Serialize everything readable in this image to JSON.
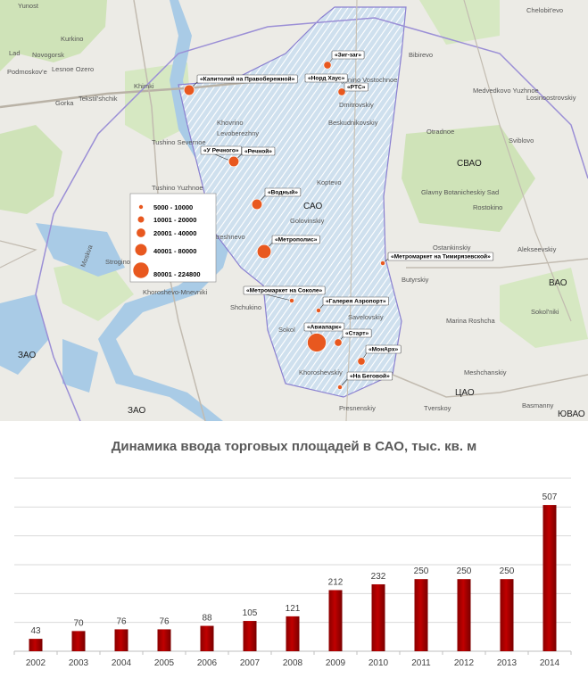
{
  "map": {
    "districts": [
      "САО",
      "СВАО",
      "ВАО",
      "ЗАО",
      "ЦАО",
      "ЮВАО",
      "ЗАО"
    ],
    "places": [
      "Yunost",
      "Kurkino",
      "Lad",
      "Novogorsk",
      "Podmoskov'e",
      "Lesnoe Ozero",
      "Khimki",
      "Gorka",
      "Tekstil'shchik",
      "Tushino Severnoe",
      "Tushino Yuzhnoe",
      "Pokrovskoe-Streshnevo",
      "Shchukino",
      "Strogino",
      "Khoroshevo-Mnevniki",
      "Khovrino",
      "Levoberezhny",
      "Degunino Vostochnoe",
      "Bibirevo",
      "Medvedkovo Yuzhnoe",
      "Losinoostrovskiy",
      "Otradnoe",
      "Sviblovo",
      "Rostokino",
      "Ostankinskiy",
      "Alekseevskiy",
      "Butyrskiy",
      "Marina Roshcha",
      "Sokol'niki",
      "Meshchanskiy",
      "Tverskoy",
      "Presnenskiy",
      "Basmanny",
      "Sokol",
      "Savelovskiy",
      "Khoroshevskiy",
      "Koptevo",
      "Golovinskiy",
      "Dmitrovskiy",
      "Beskudnikovskiy",
      "Chelobit'evo",
      "Moskva",
      "Glavny Botanicheskiy Sad"
    ],
    "legend": [
      "5000 - 10000",
      "10001 - 20000",
      "20001 - 40000",
      "40001 - 80000",
      "80001 - 224800"
    ],
    "malls": [
      {
        "name": "«Капитолий на Правобережной»",
        "size": 3
      },
      {
        "name": "«Зиг-заг»",
        "size": 2
      },
      {
        "name": "«Норд Хаус»",
        "size": 2
      },
      {
        "name": "«РТС»",
        "size": 2
      },
      {
        "name": "«У Речного»",
        "size": 2
      },
      {
        "name": "«Речной»",
        "size": 3
      },
      {
        "name": "«Водный»",
        "size": 3
      },
      {
        "name": "«Метрополис»",
        "size": 4
      },
      {
        "name": "«Метромаркет на Тимирязевской»",
        "size": 1
      },
      {
        "name": "«Метромаркет на Соколе»",
        "size": 1
      },
      {
        "name": "«Галерея Аэропорт»",
        "size": 1
      },
      {
        "name": "«Авиапарк»",
        "size": 5
      },
      {
        "name": "«Старт»",
        "size": 2
      },
      {
        "name": "«МонАрх»",
        "size": 2
      },
      {
        "name": "«На Беговой»",
        "size": 1
      }
    ]
  },
  "chart_data": {
    "type": "bar",
    "title": "Динамика ввода торговых площадей в САО, тыс. кв. м",
    "categories": [
      "2002",
      "2003",
      "2004",
      "2005",
      "2006",
      "2007",
      "2008",
      "2009",
      "2010",
      "2011",
      "2012",
      "2013",
      "2014"
    ],
    "values": [
      43,
      70,
      76,
      76,
      88,
      105,
      121,
      212,
      232,
      250,
      250,
      250,
      507
    ],
    "ylim": [
      0,
      600
    ],
    "grid": true,
    "bar_color": "#c00000"
  }
}
